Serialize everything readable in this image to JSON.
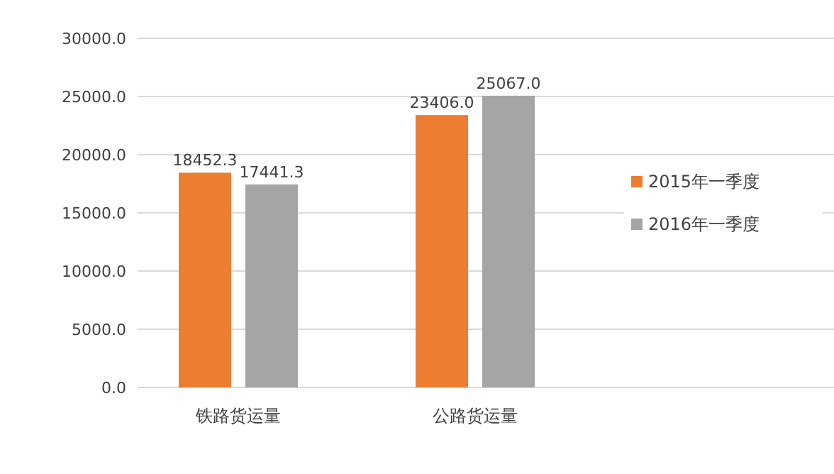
{
  "chart_data": {
    "type": "bar",
    "categories": [
      "铁路货运量",
      "公路货运量"
    ],
    "series": [
      {
        "name": "2015年一季度",
        "color": "#ed7d31",
        "values": [
          18452.3,
          23406.0
        ],
        "value_labels": [
          "18452.3",
          "23406.0"
        ]
      },
      {
        "name": "2016年一季度",
        "color": "#a5a5a5",
        "values": [
          17441.3,
          25067.0
        ],
        "value_labels": [
          "17441.3",
          "25067.0"
        ]
      }
    ],
    "ylim": [
      0,
      30000
    ],
    "yticks": [
      {
        "value": 0,
        "label": "0.0"
      },
      {
        "value": 5000,
        "label": "5000.0"
      },
      {
        "value": 10000,
        "label": "10000.0"
      },
      {
        "value": 15000,
        "label": "15000.0"
      },
      {
        "value": 20000,
        "label": "20000.0"
      },
      {
        "value": 25000,
        "label": "25000.0"
      },
      {
        "value": 30000,
        "label": "30000.0"
      }
    ],
    "grid": "y",
    "legend": "right"
  }
}
